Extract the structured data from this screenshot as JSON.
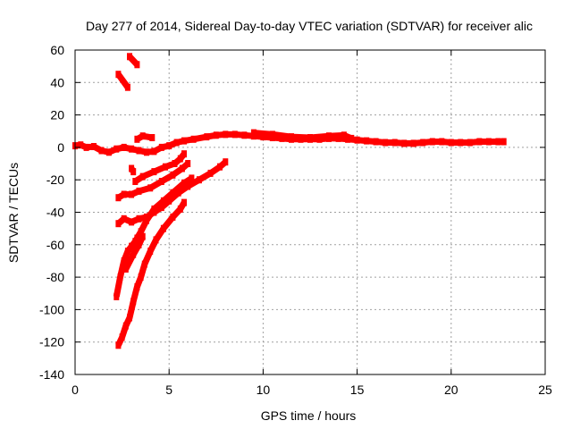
{
  "chart_data": {
    "type": "scatter",
    "title": "Day 277 of 2014, Sidereal Day-to-day VTEC variation (SDTVAR) for receiver alic",
    "xlabel": "GPS time / hours",
    "ylabel": "SDTVAR / TECUs",
    "xlim": [
      0,
      25
    ],
    "ylim": [
      -140,
      60
    ],
    "xticks": [
      0,
      5,
      10,
      15,
      20,
      25
    ],
    "yticks": [
      -140,
      -120,
      -100,
      -80,
      -60,
      -40,
      -20,
      0,
      20,
      40,
      60
    ],
    "grid": true,
    "color": "#ff0000",
    "series": [
      {
        "points": [
          [
            0,
            1
          ],
          [
            0.3,
            1.5
          ],
          [
            0.6,
            0
          ],
          [
            1,
            0.5
          ],
          [
            1.4,
            -2
          ],
          [
            1.8,
            -3
          ],
          [
            2.2,
            -1
          ],
          [
            2.6,
            0
          ],
          [
            3,
            -1
          ],
          [
            3.4,
            -2
          ],
          [
            3.8,
            -3
          ],
          [
            4.2,
            -2.5
          ],
          [
            4.6,
            0
          ],
          [
            5,
            1
          ],
          [
            5.4,
            3
          ],
          [
            5.8,
            4
          ],
          [
            6.3,
            5
          ],
          [
            7,
            6.5
          ],
          [
            7.5,
            7.5
          ],
          [
            8,
            8
          ],
          [
            8.5,
            8
          ],
          [
            9,
            7.5
          ],
          [
            9.5,
            7
          ],
          [
            10,
            6.5
          ],
          [
            10.5,
            6
          ],
          [
            11,
            5.5
          ],
          [
            11.5,
            5
          ],
          [
            12,
            5
          ],
          [
            12.5,
            5
          ],
          [
            13,
            5
          ],
          [
            13.5,
            5.5
          ],
          [
            14,
            5.5
          ],
          [
            14.5,
            5
          ],
          [
            15,
            4.5
          ],
          [
            15.5,
            4
          ],
          [
            16,
            3.5
          ],
          [
            16.5,
            3
          ],
          [
            17,
            3
          ],
          [
            17.5,
            2.5
          ],
          [
            18,
            2.5
          ],
          [
            18.5,
            3
          ],
          [
            19,
            3.5
          ],
          [
            19.5,
            3.5
          ],
          [
            20,
            3
          ],
          [
            20.5,
            3
          ],
          [
            21,
            3
          ],
          [
            21.5,
            3.5
          ],
          [
            22,
            3.5
          ],
          [
            22.5,
            3.5
          ],
          [
            22.8,
            3.5
          ]
        ]
      },
      {
        "points": [
          [
            9.5,
            9
          ],
          [
            10.5,
            8
          ],
          [
            11.5,
            6.5
          ],
          [
            12.5,
            6
          ],
          [
            13.5,
            7
          ],
          [
            14.3,
            7.5
          ],
          [
            14.7,
            5.5
          ]
        ]
      },
      {
        "points": [
          [
            2.3,
            45
          ],
          [
            2.8,
            37
          ]
        ]
      },
      {
        "points": [
          [
            2.9,
            56
          ],
          [
            3.3,
            51
          ]
        ]
      },
      {
        "points": [
          [
            3.3,
            5
          ],
          [
            3.6,
            7
          ],
          [
            4.1,
            6
          ]
        ]
      },
      {
        "points": [
          [
            3,
            -13
          ],
          [
            3.1,
            -15
          ]
        ]
      },
      {
        "points": [
          [
            3.2,
            -21
          ],
          [
            3.6,
            -18
          ],
          [
            4.2,
            -15
          ],
          [
            4.8,
            -12
          ],
          [
            5.3,
            -10
          ],
          [
            5.6,
            -7
          ],
          [
            5.8,
            -4
          ]
        ]
      },
      {
        "points": [
          [
            2.3,
            -31
          ],
          [
            2.6,
            -29
          ],
          [
            3,
            -29
          ],
          [
            3.4,
            -27
          ],
          [
            4,
            -25
          ],
          [
            4.6,
            -21
          ],
          [
            5.2,
            -17
          ],
          [
            5.7,
            -13
          ],
          [
            6,
            -10
          ]
        ]
      },
      {
        "points": [
          [
            2.3,
            -47
          ],
          [
            2.6,
            -44
          ],
          [
            3,
            -46
          ],
          [
            3.4,
            -44
          ],
          [
            3.8,
            -43
          ],
          [
            4.2,
            -40
          ],
          [
            4.6,
            -37
          ],
          [
            5,
            -33
          ],
          [
            5.5,
            -28
          ],
          [
            6,
            -24
          ],
          [
            6.6,
            -20
          ],
          [
            7.2,
            -16
          ],
          [
            7.7,
            -12
          ],
          [
            8,
            -9
          ]
        ]
      },
      {
        "points": [
          [
            2.2,
            -92
          ],
          [
            2.4,
            -80
          ],
          [
            2.6,
            -70
          ],
          [
            2.8,
            -64
          ],
          [
            3,
            -61
          ],
          [
            3.2,
            -58
          ],
          [
            3.3,
            -56
          ],
          [
            3.5,
            -52
          ],
          [
            3.8,
            -45
          ],
          [
            4.2,
            -38
          ],
          [
            4.7,
            -33
          ],
          [
            5.2,
            -28
          ],
          [
            5.8,
            -22
          ],
          [
            6.2,
            -19
          ]
        ]
      },
      {
        "points": [
          [
            2.3,
            -122
          ],
          [
            2.5,
            -117
          ],
          [
            2.7,
            -110
          ],
          [
            2.9,
            -105
          ],
          [
            3.1,
            -95
          ],
          [
            3.3,
            -86
          ],
          [
            3.5,
            -80
          ],
          [
            3.7,
            -72
          ],
          [
            4,
            -64
          ],
          [
            4.3,
            -57
          ],
          [
            4.7,
            -50
          ],
          [
            5.2,
            -43
          ],
          [
            5.6,
            -38
          ],
          [
            5.8,
            -34
          ]
        ]
      },
      {
        "points": [
          [
            2.7,
            -75
          ],
          [
            3.1,
            -66
          ],
          [
            3.4,
            -60
          ],
          [
            3.6,
            -55
          ]
        ]
      }
    ]
  }
}
